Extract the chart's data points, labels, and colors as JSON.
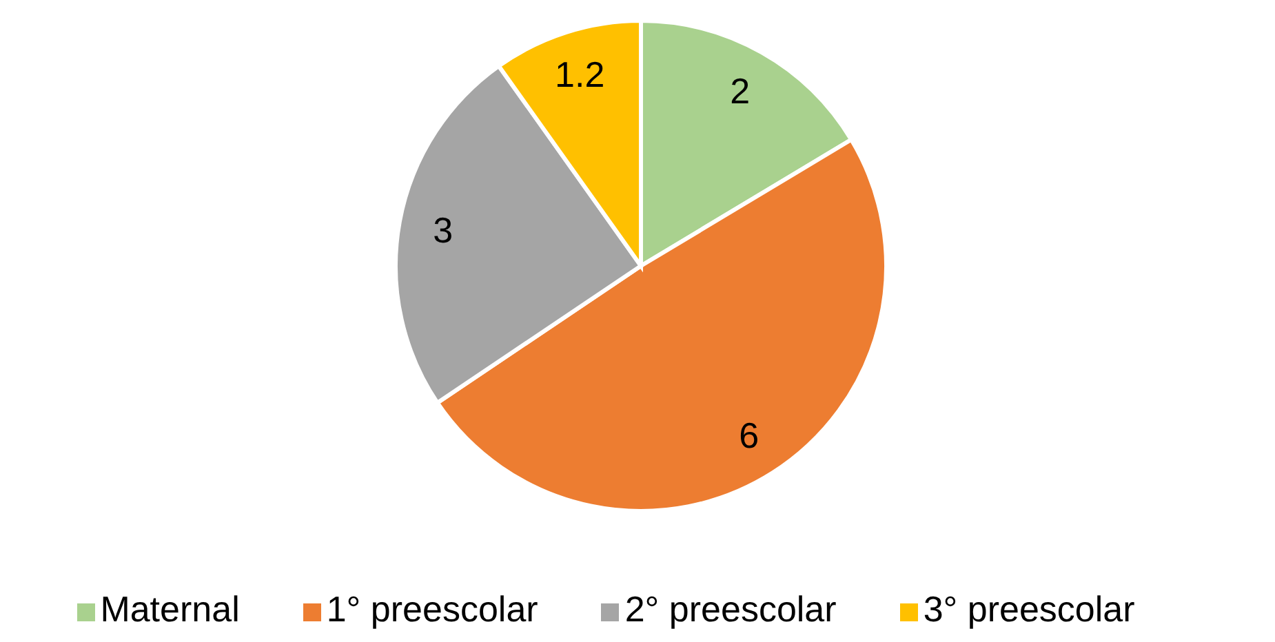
{
  "chart_data": {
    "type": "pie",
    "categories": [
      "Maternal",
      "1° preescolar",
      "2° preescolar",
      "3° preescolar"
    ],
    "values": [
      2,
      6,
      3,
      1.2
    ],
    "colors": [
      "#a9d18e",
      "#ed7d31",
      "#a5a5a5",
      "#ffc000"
    ],
    "data_labels": true,
    "legend": "bottom"
  }
}
